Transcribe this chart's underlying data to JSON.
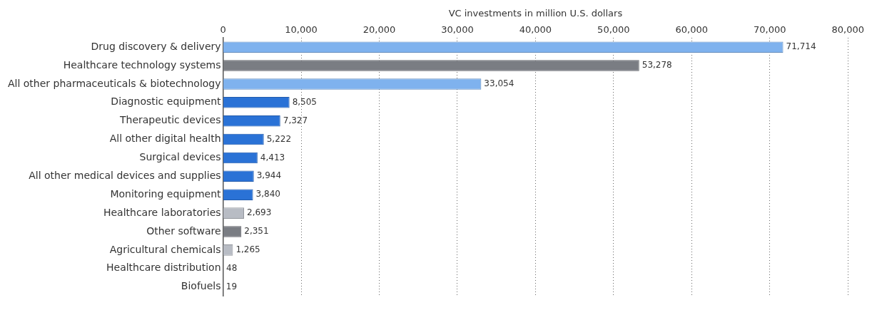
{
  "chart_data": {
    "type": "bar",
    "orientation": "horizontal",
    "xlabel": "VC investments in million U.S. dollars",
    "categories": [
      "Drug discovery & delivery",
      "Healthcare technology systems",
      "All other pharmaceuticals & biotechnology",
      "Diagnostic equipment",
      "Therapeutic devices",
      "All other digital health",
      "Surgical devices",
      "All other medical devices and supplies",
      "Monitoring equipment",
      "Healthcare laboratories",
      "Other software",
      "Agricultural chemicals",
      "Healthcare distribution",
      "Biofuels"
    ],
    "values": [
      71714,
      53278,
      33054,
      8505,
      7327,
      5222,
      4413,
      3944,
      3840,
      2693,
      2351,
      1265,
      48,
      19
    ],
    "value_labels": [
      "71,714",
      "53,278",
      "33,054",
      "8,505",
      "7,327",
      "5,222",
      "4,413",
      "3,944",
      "3,840",
      "2,693",
      "2,351",
      "1,265",
      "48",
      "19"
    ],
    "colors": [
      "#7fb2ee",
      "#7a7d83",
      "#7fb2ee",
      "#2a72d6",
      "#2a72d6",
      "#2a72d6",
      "#2a72d6",
      "#2a72d6",
      "#2a72d6",
      "#b8bcc4",
      "#7a7d83",
      "#b8bcc4",
      "#7a7d83",
      "#7a7d83"
    ],
    "xlim": [
      0,
      80000
    ],
    "xticks": [
      0,
      {
        "value": 10000,
        "label": "10,000"
      },
      {
        "value": 20000,
        "label": "20,000"
      },
      {
        "value": 30000,
        "label": "30,000"
      },
      {
        "value": 40000,
        "label": "40,000"
      },
      {
        "value": 50000,
        "label": "50,000"
      },
      {
        "value": 60000,
        "label": "60,000"
      },
      {
        "value": 70000,
        "label": "70,000"
      },
      {
        "value": 80000,
        "label": "80,000"
      }
    ],
    "grid": "x"
  }
}
